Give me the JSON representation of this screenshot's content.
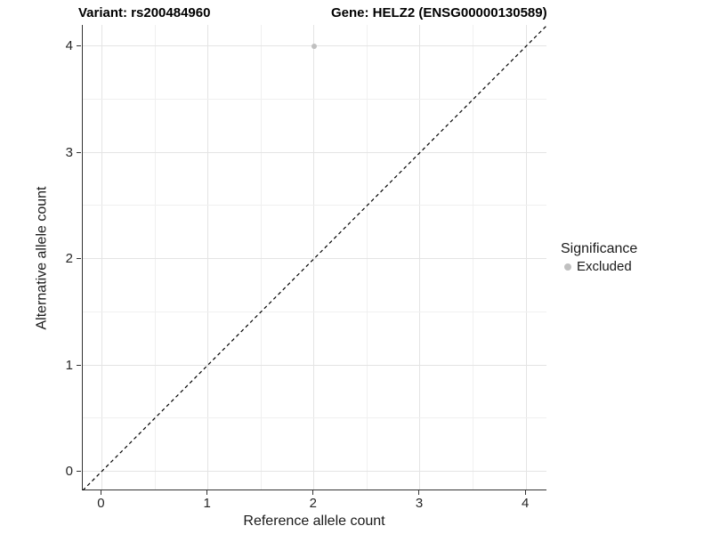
{
  "chart_data": {
    "type": "scatter",
    "title_left": "Variant: rs200484960",
    "title_right": "Gene: HELZ2 (ENSG00000130589)",
    "xlabel": "Reference allele count",
    "ylabel": "Alternative allele count",
    "xlim": [
      -0.18,
      4.2
    ],
    "ylim": [
      -0.18,
      4.2
    ],
    "x_ticks": [
      0,
      1,
      2,
      3,
      4
    ],
    "y_ticks": [
      0,
      1,
      2,
      3,
      4
    ],
    "minor_grid_step": 0.5,
    "grid": "on",
    "series": [
      {
        "name": "Excluded",
        "color": "#c0c0c0",
        "points": [
          {
            "x": 2,
            "y": 4
          }
        ]
      }
    ],
    "reference_line": {
      "equation": "y = x",
      "style": "dashed",
      "color": "#000000",
      "from": {
        "x": -0.18,
        "y": -0.18
      },
      "to": {
        "x": 4.2,
        "y": 4.2
      }
    },
    "legend": {
      "title": "Significance",
      "position": "right",
      "entries": [
        {
          "label": "Excluded",
          "color": "#c0c0c0"
        }
      ]
    }
  },
  "colors": {
    "background": "#ffffff",
    "grid_major": "#e4e4e4",
    "grid_minor": "#f0f0f0",
    "axis_line": "#333333",
    "tick_label": "#262626",
    "title_text": "#000000",
    "point": "#c0c0c0"
  }
}
